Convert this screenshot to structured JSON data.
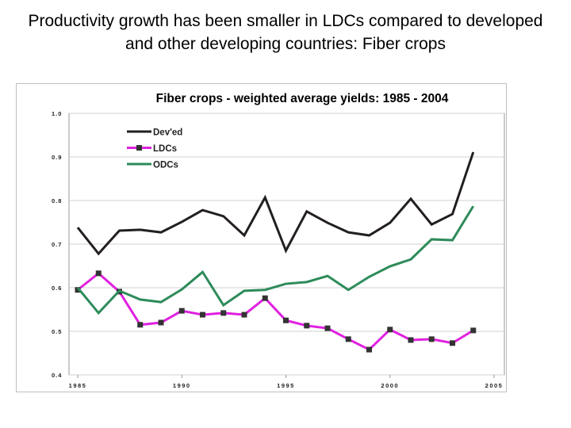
{
  "slide": {
    "title": "Productivity growth has been smaller in LDCs compared to developed and other developing countries: Fiber crops"
  },
  "chart_data": {
    "type": "line",
    "title": "Fiber crops - weighted average yields: 1985 - 2004",
    "xlabel": "",
    "ylabel": "",
    "xlim": [
      1985,
      2005
    ],
    "ylim": [
      0.4,
      1.0
    ],
    "xticks": [
      "1985",
      "1990",
      "1995",
      "2000",
      "2005"
    ],
    "yticks": [
      "0.4",
      "0.5",
      "0.6",
      "0.7",
      "0.8",
      "0.9",
      "1.0"
    ],
    "grid": "horizontal",
    "legend_position": "top-left",
    "x": [
      1985,
      1986,
      1987,
      1988,
      1989,
      1990,
      1991,
      1992,
      1993,
      1994,
      1995,
      1996,
      1997,
      1998,
      1999,
      2000,
      2001,
      2002,
      2003,
      2004
    ],
    "series": [
      {
        "name": "Dev'ed",
        "color": "#231f20",
        "marker": "none",
        "values": [
          0.738,
          0.678,
          0.731,
          0.733,
          0.727,
          0.751,
          0.778,
          0.764,
          0.72,
          0.807,
          0.685,
          0.775,
          0.749,
          0.727,
          0.72,
          0.749,
          0.804,
          0.745,
          0.769,
          0.911
        ]
      },
      {
        "name": "LDCs",
        "color": "#e020e0",
        "marker": "square",
        "values": [
          0.595,
          0.633,
          0.591,
          0.515,
          0.52,
          0.547,
          0.538,
          0.542,
          0.538,
          0.576,
          0.525,
          0.513,
          0.507,
          0.482,
          0.458,
          0.504,
          0.48,
          0.482,
          0.473,
          0.502
        ]
      },
      {
        "name": "ODCs",
        "color": "#2e8b5a",
        "marker": "none",
        "values": [
          0.6,
          0.542,
          0.593,
          0.573,
          0.567,
          0.596,
          0.636,
          0.56,
          0.593,
          0.595,
          0.609,
          0.613,
          0.627,
          0.595,
          0.625,
          0.649,
          0.665,
          0.711,
          0.709,
          0.787
        ]
      }
    ]
  }
}
